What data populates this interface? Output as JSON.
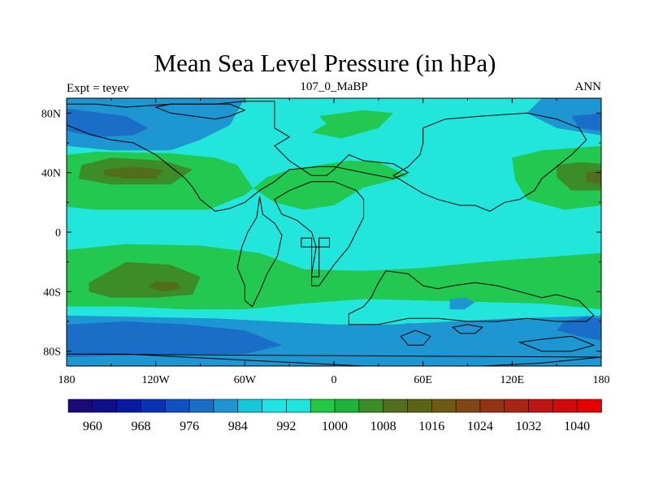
{
  "title": "Mean Sea Level Pressure (in hPa)",
  "left_label": "Expt = teyev",
  "center_label": "107_0_MaBP",
  "right_label": "ANN",
  "lon_ticks": [
    {
      "value": -180,
      "label": "180"
    },
    {
      "value": -120,
      "label": "120W"
    },
    {
      "value": -60,
      "label": "60W"
    },
    {
      "value": 0,
      "label": "0"
    },
    {
      "value": 60,
      "label": "60E"
    },
    {
      "value": 120,
      "label": "120E"
    },
    {
      "value": 180,
      "label": "180"
    }
  ],
  "lat_ticks": [
    {
      "value": 80,
      "label": "80N"
    },
    {
      "value": 40,
      "label": "40N"
    },
    {
      "value": 0,
      "label": "0"
    },
    {
      "value": -40,
      "label": "40S"
    },
    {
      "value": -80,
      "label": "80S"
    }
  ],
  "colorbar": {
    "colors": [
      "#1a0a78",
      "#0f0f8c",
      "#0a1aa0",
      "#0a32b4",
      "#1050c0",
      "#1a6ec8",
      "#1e96d2",
      "#14c8dc",
      "#1ee6e6",
      "#1ee6dc",
      "#22c846",
      "#1eb43c",
      "#3c8c28",
      "#506e1e",
      "#5a6414",
      "#6e5a10",
      "#824614",
      "#963214",
      "#aa2314",
      "#be1414",
      "#d20a0a",
      "#e60000"
    ],
    "labels": [
      "960",
      "968",
      "976",
      "984",
      "992",
      "1000",
      "1008",
      "1016",
      "1024",
      "1032",
      "1040"
    ]
  },
  "field_colors": {
    "c992": "#1e96d2",
    "c996": "#1ec8e6",
    "c1000": "#22e6dc",
    "c1004": "#22c850",
    "c1012": "#3c8c28",
    "c1016": "#506e1e",
    "c988": "#1a6ec8"
  },
  "pressure_regions": [
    {
      "level": "c992",
      "label": "subpolar low north pacific",
      "pts": [
        [
          -180,
          90
        ],
        [
          -180,
          58
        ],
        [
          -150,
          55
        ],
        [
          -110,
          55
        ],
        [
          -90,
          62
        ],
        [
          -70,
          72
        ],
        [
          -60,
          90
        ]
      ]
    },
    {
      "level": "c988",
      "label": "north pacific low core",
      "pts": [
        [
          -180,
          83
        ],
        [
          -180,
          68
        ],
        [
          -160,
          64
        ],
        [
          -135,
          65
        ],
        [
          -125,
          70
        ],
        [
          -140,
          78
        ]
      ]
    },
    {
      "level": "c992",
      "label": "subpolar low north asia",
      "pts": [
        [
          140,
          90
        ],
        [
          130,
          80
        ],
        [
          150,
          70
        ],
        [
          180,
          65
        ],
        [
          180,
          90
        ]
      ]
    },
    {
      "level": "c988",
      "label": "north asia low core",
      "pts": [
        [
          160,
          78
        ],
        [
          165,
          70
        ],
        [
          180,
          68
        ],
        [
          180,
          80
        ]
      ]
    },
    {
      "level": "c1004",
      "label": "north pacific high",
      "pts": [
        [
          -180,
          52
        ],
        [
          -160,
          54
        ],
        [
          -110,
          53
        ],
        [
          -80,
          50
        ],
        [
          -65,
          45
        ],
        [
          -55,
          30
        ],
        [
          -40,
          20
        ],
        [
          -20,
          15
        ],
        [
          0,
          18
        ],
        [
          20,
          30
        ],
        [
          40,
          35
        ],
        [
          50,
          38
        ],
        [
          30,
          47
        ],
        [
          10,
          48
        ],
        [
          -30,
          42
        ],
        [
          -45,
          37
        ],
        [
          -60,
          25
        ],
        [
          -85,
          15
        ],
        [
          -120,
          15
        ],
        [
          -160,
          15
        ],
        [
          -180,
          17
        ]
      ]
    },
    {
      "level": "c1012",
      "label": "north pacific high core",
      "pts": [
        [
          -170,
          45
        ],
        [
          -150,
          50
        ],
        [
          -115,
          48
        ],
        [
          -95,
          42
        ],
        [
          -110,
          32
        ],
        [
          -150,
          32
        ],
        [
          -172,
          36
        ]
      ]
    },
    {
      "level": "c1016",
      "label": "north pacific high center",
      "pts": [
        [
          -155,
          42
        ],
        [
          -135,
          44
        ],
        [
          -115,
          42
        ],
        [
          -120,
          36
        ],
        [
          -140,
          36
        ],
        [
          -155,
          38
        ]
      ]
    },
    {
      "level": "c1004",
      "label": "north asia high",
      "pts": [
        [
          -10,
          78
        ],
        [
          -5,
          73
        ],
        [
          -15,
          67
        ],
        [
          5,
          63
        ],
        [
          30,
          70
        ],
        [
          40,
          80
        ],
        [
          20,
          82
        ]
      ]
    },
    {
      "level": "c1004",
      "label": "east high",
      "pts": [
        [
          -20,
          77
        ],
        [
          -20,
          68
        ]
      ]
    },
    {
      "level": "c1004",
      "label": "east pacific high",
      "pts": [
        [
          120,
          50
        ],
        [
          140,
          55
        ],
        [
          180,
          58
        ],
        [
          180,
          18
        ],
        [
          155,
          15
        ],
        [
          130,
          22
        ],
        [
          122,
          35
        ]
      ]
    },
    {
      "level": "c1012",
      "label": "east pacific high core",
      "pts": [
        [
          150,
          45
        ],
        [
          165,
          47
        ],
        [
          180,
          46
        ],
        [
          180,
          28
        ],
        [
          160,
          28
        ],
        [
          150,
          37
        ]
      ]
    },
    {
      "level": "c1016",
      "label": "east pacific high center",
      "pts": [
        [
          170,
          40
        ],
        [
          180,
          42
        ],
        [
          180,
          32
        ],
        [
          170,
          34
        ]
      ]
    },
    {
      "level": "c1004",
      "label": "southern subtropical high",
      "pts": [
        [
          -180,
          -12
        ],
        [
          -140,
          -8
        ],
        [
          -90,
          -9
        ],
        [
          -50,
          -14
        ],
        [
          -20,
          -25
        ],
        [
          20,
          -26
        ],
        [
          60,
          -24
        ],
        [
          100,
          -20
        ],
        [
          140,
          -17
        ],
        [
          180,
          -14
        ],
        [
          180,
          -52
        ],
        [
          140,
          -48
        ],
        [
          100,
          -47
        ],
        [
          60,
          -46
        ],
        [
          20,
          -45
        ],
        [
          -20,
          -48
        ],
        [
          -60,
          -52
        ],
        [
          -100,
          -52
        ],
        [
          -140,
          -50
        ],
        [
          -180,
          -50
        ]
      ]
    },
    {
      "level": "c1012",
      "label": "southern high core",
      "pts": [
        [
          -165,
          -34
        ],
        [
          -140,
          -20
        ],
        [
          -110,
          -22
        ],
        [
          -90,
          -30
        ],
        [
          -95,
          -42
        ],
        [
          -120,
          -44
        ],
        [
          -150,
          -44
        ],
        [
          -165,
          -40
        ]
      ]
    },
    {
      "level": "c1016",
      "label": "southern high center",
      "pts": [
        [
          -120,
          -33
        ],
        [
          -105,
          -34
        ],
        [
          -103,
          -38
        ],
        [
          -115,
          -40
        ],
        [
          -125,
          -37
        ]
      ]
    },
    {
      "level": "c1000",
      "label": "mid-south band",
      "pts": [
        [
          -180,
          -50
        ],
        [
          -140,
          -50
        ],
        [
          -100,
          -52
        ],
        [
          -60,
          -52
        ],
        [
          -20,
          -48
        ],
        [
          20,
          -45
        ],
        [
          60,
          -46
        ],
        [
          100,
          -47
        ],
        [
          140,
          -48
        ],
        [
          180,
          -52
        ],
        [
          180,
          -56
        ],
        [
          -180,
          -56
        ]
      ]
    },
    {
      "level": "c992",
      "label": "southern ocean band",
      "pts": [
        [
          -180,
          -56
        ],
        [
          -130,
          -57
        ],
        [
          -80,
          -58
        ],
        [
          -40,
          -60
        ],
        [
          0,
          -62
        ],
        [
          40,
          -62
        ],
        [
          80,
          -60
        ],
        [
          120,
          -58
        ],
        [
          180,
          -56
        ],
        [
          180,
          -90
        ],
        [
          -180,
          -90
        ]
      ]
    },
    {
      "level": "c988",
      "label": "southern ocean low",
      "pts": [
        [
          -180,
          -62
        ],
        [
          -140,
          -60
        ],
        [
          -100,
          -62
        ],
        [
          -60,
          -66
        ],
        [
          -35,
          -76
        ],
        [
          -60,
          -82
        ],
        [
          -120,
          -82
        ],
        [
          -180,
          -84
        ]
      ]
    },
    {
      "level": "c988",
      "label": "southern ocean low east",
      "pts": [
        [
          155,
          -60
        ],
        [
          170,
          -57
        ],
        [
          180,
          -58
        ],
        [
          180,
          -73
        ],
        [
          165,
          -70
        ],
        [
          150,
          -66
        ]
      ]
    },
    {
      "level": "c992",
      "label": "tropical trough",
      "pts": [
        [
          78,
          -45
        ],
        [
          88,
          -44
        ],
        [
          95,
          -47
        ],
        [
          88,
          -52
        ],
        [
          78,
          -52
        ]
      ]
    },
    {
      "level": "c992",
      "label": "antarctic",
      "pts": [
        [
          40,
          -64
        ],
        [
          50,
          -61
        ],
        [
          60,
          -62
        ],
        [
          55,
          -70
        ],
        [
          45,
          -70
        ]
      ]
    }
  ],
  "coastlines": [
    [
      [
        -180,
        86
      ],
      [
        -160,
        86
      ],
      [
        -140,
        84
      ],
      [
        -110,
        86
      ],
      [
        -80,
        86
      ],
      [
        -60,
        88
      ],
      [
        -40,
        88
      ],
      [
        -40,
        70
      ],
      [
        -30,
        64
      ],
      [
        -40,
        58
      ],
      [
        -30,
        48
      ],
      [
        -15,
        38
      ],
      [
        -5,
        38
      ],
      [
        0,
        42
      ],
      [
        10,
        52
      ],
      [
        20,
        48
      ],
      [
        40,
        46
      ],
      [
        50,
        40
      ],
      [
        40,
        36
      ],
      [
        20,
        40
      ],
      [
        0,
        44
      ],
      [
        -10,
        44
      ],
      [
        -30,
        42
      ],
      [
        -40,
        34
      ],
      [
        -50,
        28
      ],
      [
        -60,
        20
      ],
      [
        -70,
        16
      ],
      [
        -80,
        14
      ],
      [
        -90,
        22
      ],
      [
        -95,
        30
      ],
      [
        -100,
        36
      ],
      [
        -110,
        44
      ],
      [
        -120,
        52
      ],
      [
        -135,
        60
      ],
      [
        -150,
        62
      ],
      [
        -165,
        66
      ],
      [
        -180,
        72
      ]
    ],
    [
      [
        -120,
        84
      ],
      [
        -110,
        80
      ],
      [
        -95,
        78
      ],
      [
        -80,
        76
      ],
      [
        -70,
        78
      ],
      [
        -60,
        82
      ],
      [
        -70,
        86
      ],
      [
        -90,
        86
      ],
      [
        -110,
        86
      ]
    ],
    [
      [
        -50,
        24
      ],
      [
        -48,
        12
      ],
      [
        -40,
        6
      ],
      [
        -35,
        -2
      ],
      [
        -38,
        -16
      ],
      [
        -45,
        -28
      ],
      [
        -50,
        -40
      ],
      [
        -55,
        -50
      ],
      [
        -60,
        -46
      ],
      [
        -60,
        -36
      ],
      [
        -65,
        -24
      ],
      [
        -62,
        -10
      ],
      [
        -58,
        0
      ],
      [
        -52,
        10
      ]
    ],
    [
      [
        -40,
        22
      ],
      [
        -30,
        28
      ],
      [
        -15,
        34
      ],
      [
        0,
        34
      ],
      [
        15,
        28
      ],
      [
        20,
        22
      ],
      [
        20,
        10
      ],
      [
        15,
        0
      ],
      [
        10,
        -10
      ],
      [
        0,
        -22
      ],
      [
        -10,
        -36
      ],
      [
        -15,
        -36
      ],
      [
        -15,
        -28
      ],
      [
        -12,
        -10
      ],
      [
        -15,
        0
      ],
      [
        -25,
        8
      ],
      [
        -35,
        12
      ]
    ],
    [
      [
        -22,
        -10
      ],
      [
        -3,
        -10
      ],
      [
        -3,
        -4
      ],
      [
        -10,
        -4
      ],
      [
        -10,
        -30
      ],
      [
        -15,
        -30
      ],
      [
        -15,
        -4
      ],
      [
        -22,
        -4
      ]
    ],
    [
      [
        60,
        70
      ],
      [
        75,
        76
      ],
      [
        100,
        78
      ],
      [
        130,
        80
      ],
      [
        150,
        76
      ],
      [
        165,
        70
      ],
      [
        170,
        62
      ],
      [
        160,
        52
      ],
      [
        150,
        44
      ],
      [
        140,
        36
      ],
      [
        135,
        28
      ],
      [
        125,
        22
      ],
      [
        115,
        20
      ],
      [
        105,
        14
      ],
      [
        95,
        18
      ],
      [
        85,
        18
      ],
      [
        70,
        22
      ],
      [
        60,
        26
      ],
      [
        50,
        32
      ],
      [
        40,
        38
      ],
      [
        50,
        44
      ],
      [
        58,
        52
      ],
      [
        60,
        60
      ]
    ],
    [
      [
        35,
        -26
      ],
      [
        50,
        -28
      ],
      [
        60,
        -36
      ],
      [
        70,
        -38
      ],
      [
        80,
        -36
      ],
      [
        95,
        -34
      ],
      [
        110,
        -36
      ],
      [
        125,
        -40
      ],
      [
        140,
        -44
      ],
      [
        150,
        -42
      ],
      [
        165,
        -46
      ],
      [
        175,
        -56
      ],
      [
        170,
        -60
      ],
      [
        150,
        -60
      ],
      [
        130,
        -58
      ],
      [
        110,
        -60
      ],
      [
        90,
        -60
      ],
      [
        70,
        -58
      ],
      [
        50,
        -58
      ],
      [
        30,
        -62
      ],
      [
        10,
        -62
      ],
      [
        10,
        -55
      ],
      [
        20,
        -50
      ],
      [
        25,
        -44
      ],
      [
        30,
        -34
      ]
    ],
    [
      [
        80,
        -64
      ],
      [
        90,
        -62
      ],
      [
        100,
        -64
      ],
      [
        95,
        -68
      ],
      [
        85,
        -68
      ]
    ],
    [
      [
        -180,
        -82
      ],
      [
        -140,
        -82
      ],
      [
        -100,
        -84
      ],
      [
        -60,
        -86
      ],
      [
        -20,
        -88
      ],
      [
        20,
        -90
      ],
      [
        60,
        -90
      ],
      [
        100,
        -90
      ],
      [
        140,
        -88
      ],
      [
        180,
        -84
      ]
    ],
    [
      [
        125,
        -74
      ],
      [
        140,
        -72
      ],
      [
        160,
        -70
      ],
      [
        175,
        -76
      ],
      [
        160,
        -80
      ],
      [
        140,
        -80
      ]
    ],
    [
      [
        45,
        -70
      ],
      [
        55,
        -66
      ],
      [
        65,
        -70
      ],
      [
        60,
        -76
      ],
      [
        50,
        -76
      ]
    ]
  ]
}
